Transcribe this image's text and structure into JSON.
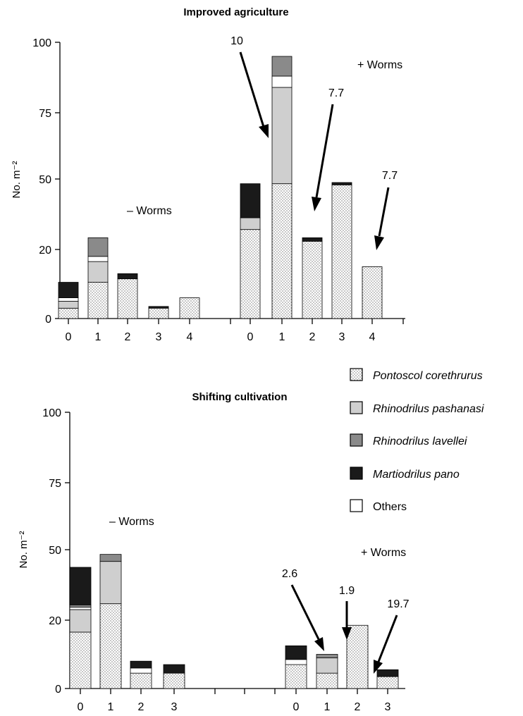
{
  "legend": [
    {
      "key": "pontoscolex",
      "label": "Pontoscol corethrurus",
      "fill": "dots"
    },
    {
      "key": "pashanasi",
      "label": "Rhinodrilus pashanasi",
      "fill": "lightgray"
    },
    {
      "key": "lavellei",
      "label": "Rhinodrilus lavellei",
      "fill": "darkgray"
    },
    {
      "key": "pano",
      "label": "Martiodrilus pano",
      "fill": "black"
    },
    {
      "key": "others",
      "label": "Others",
      "fill": "white"
    }
  ],
  "colors": {
    "pano": "#1a1a1a",
    "pashanasi": "#cfcfcf",
    "lavellei": "#8a8a8a",
    "others": "#ffffff",
    "dots": "#555555"
  },
  "chart_data": [
    {
      "type": "bar",
      "stacked": true,
      "title": "Improved agriculture",
      "ylabel": "No. m⁻²",
      "ylim": [
        0,
        100
      ],
      "yticks": [
        "0",
        "20",
        "50",
        "75",
        "100"
      ],
      "grid": false,
      "groups": [
        {
          "label": "– Worms",
          "categories": [
            "0",
            "1",
            "2",
            "3",
            "4"
          ],
          "segments": [
            {
              "pontoscolex": 3,
              "pashanasi": 2,
              "others": 1,
              "pano": 4.5
            },
            {
              "pontoscolex": 10.5,
              "pashanasi": 6,
              "others": 1.5,
              "lavellei": 7
            },
            {
              "pontoscolex": 11.5,
              "pano": 1.5
            },
            {
              "pontoscolex": 3,
              "pano": 0.5
            },
            {
              "pontoscolex": 6
            }
          ]
        },
        {
          "label": "+ Worms",
          "categories": [
            "0",
            "1",
            "2",
            "3",
            "4"
          ],
          "segments": [
            {
              "pontoscolex": 28.5,
              "pashanasi": 5,
              "pano": 14.5
            },
            {
              "pontoscolex": 48,
              "pashanasi": 36,
              "lavellei": 7,
              "others": 4
            },
            {
              "pontoscolex": 23.5,
              "pano": 1.5
            },
            {
              "pontoscolex": 47.5,
              "pano": 1
            },
            {
              "pontoscolex": 15
            }
          ],
          "annotations": [
            {
              "text": "10",
              "category": "0"
            },
            {
              "text": "7.7",
              "category": "2"
            },
            {
              "text": "7.7",
              "category": "4"
            }
          ]
        }
      ]
    },
    {
      "type": "bar",
      "stacked": true,
      "title": "Shifting cultivation",
      "ylabel": "No. m⁻²",
      "ylim": [
        0,
        100
      ],
      "yticks": [
        "0",
        "20",
        "50",
        "75",
        "100"
      ],
      "grid": false,
      "groups": [
        {
          "label": "– Worms",
          "categories": [
            "0",
            "1",
            "2",
            "3"
          ],
          "segments": [
            {
              "pontoscolex": 16.5,
              "pashanasi": 8,
              "others": 1,
              "lavellei": 1,
              "pano": 16
            },
            {
              "pontoscolex": 27,
              "pashanasi": 18,
              "lavellei": 3
            },
            {
              "pontoscolex": 4.5,
              "others": 1.5,
              "pano": 2
            },
            {
              "pontoscolex": 4.5,
              "pano": 2.5
            }
          ]
        },
        {
          "label": "+ Worms",
          "categories": [
            "0",
            "1",
            "2",
            "3"
          ],
          "segments": [
            {
              "pontoscolex": 7,
              "others": 1.5,
              "pano": 4
            },
            {
              "pontoscolex": 4.5,
              "pashanasi": 4.5,
              "lavellei": 1
            },
            {
              "pontoscolex": 18.5
            },
            {
              "pontoscolex": 3.5,
              "pano": 2
            }
          ],
          "annotations": [
            {
              "text": "2.6",
              "category": "1"
            },
            {
              "text": "1.9",
              "category": "1"
            },
            {
              "text": "19.7",
              "category": "3"
            }
          ]
        }
      ]
    }
  ]
}
